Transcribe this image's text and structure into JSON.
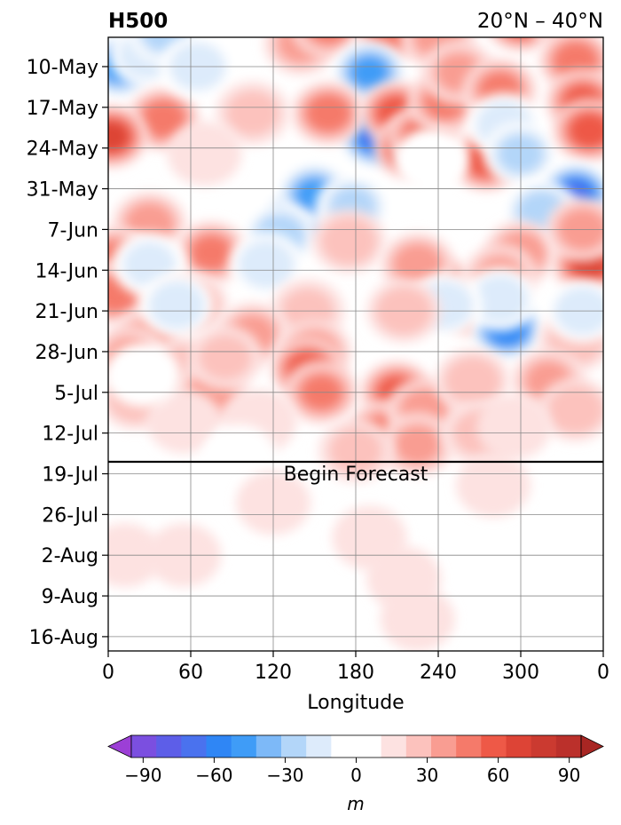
{
  "chart_data": {
    "type": "heatmap",
    "title_left": "H500",
    "title_right": "20°N – 40°N",
    "xlabel": "Longitude",
    "ylabel": "",
    "x_ticks": [
      "0",
      "60",
      "120",
      "180",
      "240",
      "300",
      "0"
    ],
    "y_ticks": [
      "10-May",
      "17-May",
      "24-May",
      "31-May",
      "7-Jun",
      "14-Jun",
      "21-Jun",
      "28-Jun",
      "5-Jul",
      "12-Jul",
      "19-Jul",
      "26-Jul",
      "2-Aug",
      "9-Aug",
      "16-Aug"
    ],
    "grid": true,
    "forecast_annotation": "Begin Forecast",
    "colorbar": {
      "label": "m",
      "ticks": [
        "−90",
        "−60",
        "−30",
        "0",
        "30",
        "60",
        "90"
      ],
      "levels": [
        -105,
        -95,
        -85,
        -75,
        -65,
        -55,
        -45,
        -35,
        -25,
        -15,
        -5,
        5,
        15,
        25,
        35,
        45,
        55,
        65,
        75,
        85,
        95,
        105
      ],
      "colors": [
        "#9c3fd6",
        "#7b4fe0",
        "#5d5ee8",
        "#4a72ee",
        "#2f86f5",
        "#3f9cf7",
        "#7db9f8",
        "#b3d6f9",
        "#ddebfb",
        "#ffffff",
        "#ffffff",
        "#fde2e1",
        "#fcc2bd",
        "#f99d92",
        "#f57a6a",
        "#ee5947",
        "#dd4436",
        "#cb3a30",
        "#bb302b",
        "#a82623"
      ],
      "extend": "both"
    },
    "anomalies": [
      {
        "lon": 8,
        "date": "10-May",
        "value": -50
      },
      {
        "lon": 28,
        "date": "8-May",
        "value": -25
      },
      {
        "lon": 42,
        "date": "4-May",
        "value": -35
      },
      {
        "lon": 40,
        "date": "19-May",
        "value": 45
      },
      {
        "lon": 2,
        "date": "22-May",
        "value": 60
      },
      {
        "lon": 65,
        "date": "10-May",
        "value": -25
      },
      {
        "lon": 140,
        "date": "6-May",
        "value": 30
      },
      {
        "lon": 160,
        "date": "3-May",
        "value": 40
      },
      {
        "lon": 205,
        "date": "4-May",
        "value": 45
      },
      {
        "lon": 240,
        "date": "5-May",
        "value": 35
      },
      {
        "lon": 300,
        "date": "2-May",
        "value": 55
      },
      {
        "lon": 330,
        "date": "1-May",
        "value": 30
      },
      {
        "lon": 195,
        "date": "22-May",
        "value": -70
      },
      {
        "lon": 190,
        "date": "11-May",
        "value": -50
      },
      {
        "lon": 160,
        "date": "18-May",
        "value": 45
      },
      {
        "lon": 210,
        "date": "18-May",
        "value": 55
      },
      {
        "lon": 220,
        "date": "24-May",
        "value": 65
      },
      {
        "lon": 230,
        "date": "22-May",
        "value": 50
      },
      {
        "lon": 245,
        "date": "16-May",
        "value": 40
      },
      {
        "lon": 255,
        "date": "11-May",
        "value": 30
      },
      {
        "lon": 275,
        "date": "26-May",
        "value": 55
      },
      {
        "lon": 285,
        "date": "14-May",
        "value": 40
      },
      {
        "lon": 288,
        "date": "20-May",
        "value": -25
      },
      {
        "lon": 300,
        "date": "25-May",
        "value": -30
      },
      {
        "lon": 340,
        "date": "9-May",
        "value": 45
      },
      {
        "lon": 345,
        "date": "16-May",
        "value": 50
      },
      {
        "lon": 350,
        "date": "21-May",
        "value": 55
      },
      {
        "lon": 340,
        "date": "1-Jun",
        "value": -70
      },
      {
        "lon": 315,
        "date": "4-Jun",
        "value": -35
      },
      {
        "lon": 235,
        "date": "26-May",
        "value": -15
      },
      {
        "lon": 105,
        "date": "18-May",
        "value": 20
      },
      {
        "lon": 70,
        "date": "25-May",
        "value": 15
      },
      {
        "lon": 140,
        "date": "5-Jun",
        "value": -55
      },
      {
        "lon": 150,
        "date": "1-Jun",
        "value": -50
      },
      {
        "lon": 125,
        "date": "8-Jun",
        "value": -35
      },
      {
        "lon": 178,
        "date": "3-Jun",
        "value": -30
      },
      {
        "lon": 30,
        "date": "6-Jun",
        "value": 35
      },
      {
        "lon": 75,
        "date": "11-Jun",
        "value": 40
      },
      {
        "lon": 5,
        "date": "12-Jun",
        "value": 40
      },
      {
        "lon": 5,
        "date": "18-Jun",
        "value": 45
      },
      {
        "lon": 30,
        "date": "13-Jun",
        "value": -20
      },
      {
        "lon": 60,
        "date": "20-Jun",
        "value": 30
      },
      {
        "lon": 115,
        "date": "13-Jun",
        "value": -25
      },
      {
        "lon": 175,
        "date": "9-Jun",
        "value": 25
      },
      {
        "lon": 240,
        "date": "17-Jun",
        "value": 50
      },
      {
        "lon": 225,
        "date": "13-Jun",
        "value": 35
      },
      {
        "lon": 265,
        "date": "20-Jun",
        "value": 55
      },
      {
        "lon": 300,
        "date": "11-Jun",
        "value": 35
      },
      {
        "lon": 285,
        "date": "15-Jun",
        "value": 30
      },
      {
        "lon": 350,
        "date": "13-Jun",
        "value": 60
      },
      {
        "lon": 345,
        "date": "7-Jun",
        "value": 35
      },
      {
        "lon": 290,
        "date": "24-Jun",
        "value": -65
      },
      {
        "lon": 285,
        "date": "19-Jun",
        "value": -25
      },
      {
        "lon": 245,
        "date": "20-Jun",
        "value": -25
      },
      {
        "lon": 340,
        "date": "26-Jun",
        "value": 25
      },
      {
        "lon": 345,
        "date": "21-Jun",
        "value": -25
      },
      {
        "lon": 215,
        "date": "21-Jun",
        "value": 25
      },
      {
        "lon": 145,
        "date": "21-Jun",
        "value": 20
      },
      {
        "lon": 105,
        "date": "25-Jun",
        "value": 30
      },
      {
        "lon": 150,
        "date": "28-Jun",
        "value": 35
      },
      {
        "lon": 145,
        "date": "1-Jul",
        "value": 55
      },
      {
        "lon": 155,
        "date": "5-Jul",
        "value": 40
      },
      {
        "lon": 30,
        "date": "26-Jun",
        "value": 35
      },
      {
        "lon": 15,
        "date": "29-Jun",
        "value": 30
      },
      {
        "lon": 55,
        "date": "1-Jul",
        "value": 25
      },
      {
        "lon": 75,
        "date": "5-Jul",
        "value": 30
      },
      {
        "lon": 85,
        "date": "29-Jun",
        "value": 20
      },
      {
        "lon": 20,
        "date": "6-Jul",
        "value": 25
      },
      {
        "lon": 50,
        "date": "20-Jun",
        "value": -25
      },
      {
        "lon": 210,
        "date": "5-Jul",
        "value": 50
      },
      {
        "lon": 200,
        "date": "12-Jul",
        "value": 40
      },
      {
        "lon": 230,
        "date": "8-Jul",
        "value": 35
      },
      {
        "lon": 225,
        "date": "14-Jul",
        "value": 30
      },
      {
        "lon": 265,
        "date": "3-Jul",
        "value": 25
      },
      {
        "lon": 270,
        "date": "12-Jul",
        "value": 20
      },
      {
        "lon": 320,
        "date": "3-Jul",
        "value": 30
      },
      {
        "lon": 340,
        "date": "8-Jul",
        "value": 25
      },
      {
        "lon": 295,
        "date": "11-Jul",
        "value": 15
      },
      {
        "lon": 55,
        "date": "10-Jul",
        "value": 15
      },
      {
        "lon": 180,
        "date": "15-Jul",
        "value": 20
      },
      {
        "lon": 110,
        "date": "10-Jul",
        "value": 15
      },
      {
        "lon": 25,
        "date": "2-Jul",
        "value": -15
      },
      {
        "lon": 95,
        "date": "16-Jul",
        "value": -10
      },
      {
        "lon": 190,
        "date": "30-Jul",
        "value": 15
      },
      {
        "lon": 215,
        "date": "6-Aug",
        "value": 15
      },
      {
        "lon": 225,
        "date": "13-Aug",
        "value": 15
      },
      {
        "lon": 120,
        "date": "24-Jul",
        "value": 12
      },
      {
        "lon": 12,
        "date": "2-Aug",
        "value": 12
      },
      {
        "lon": 55,
        "date": "2-Aug",
        "value": 12
      },
      {
        "lon": 280,
        "date": "21-Jul",
        "value": 10
      }
    ]
  }
}
